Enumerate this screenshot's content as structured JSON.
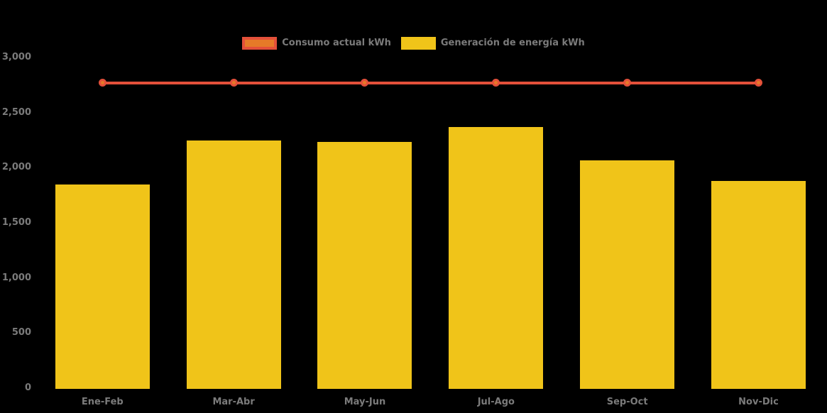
{
  "background": "#000000",
  "axis_text_color": "#7b7b7b",
  "legend": {
    "items": [
      {
        "label": "Consumo actual kWh",
        "series_type": "line",
        "swatch_fill": "#e67a28",
        "swatch_border": "#e4503a"
      },
      {
        "label": "Generación de energía kWh",
        "series_type": "bar",
        "swatch_fill": "#f0c419",
        "swatch_border": "#f0c419"
      }
    ]
  },
  "chart_data": {
    "type": "bar",
    "subtype": "bar-with-constant-line",
    "title": "",
    "xlabel": "",
    "ylabel": "",
    "categories": [
      "Ene-Feb",
      "Mar-Abr",
      "May-Jun",
      "Jul-Ago",
      "Sep-Oct",
      "Nov-Dic"
    ],
    "series": [
      {
        "name": "Consumo actual kWh",
        "type": "line",
        "color": "#e4503a",
        "marker_fill": "#e67a28",
        "values": [
          2770,
          2770,
          2770,
          2770,
          2770,
          2770
        ]
      },
      {
        "name": "Generación de energía kWh",
        "type": "bar",
        "color": "#f0c419",
        "values": [
          1845,
          2245,
          2235,
          2370,
          2065,
          1880
        ]
      }
    ],
    "ylim": [
      0,
      3000
    ],
    "yticks": [
      0,
      500,
      1000,
      1500,
      2000,
      2500,
      3000
    ],
    "ytick_labels": [
      "0",
      "500",
      "1,000",
      "1,500",
      "2,000",
      "2,500",
      "3,000"
    ],
    "grid": false,
    "legend_position": "top-center"
  }
}
